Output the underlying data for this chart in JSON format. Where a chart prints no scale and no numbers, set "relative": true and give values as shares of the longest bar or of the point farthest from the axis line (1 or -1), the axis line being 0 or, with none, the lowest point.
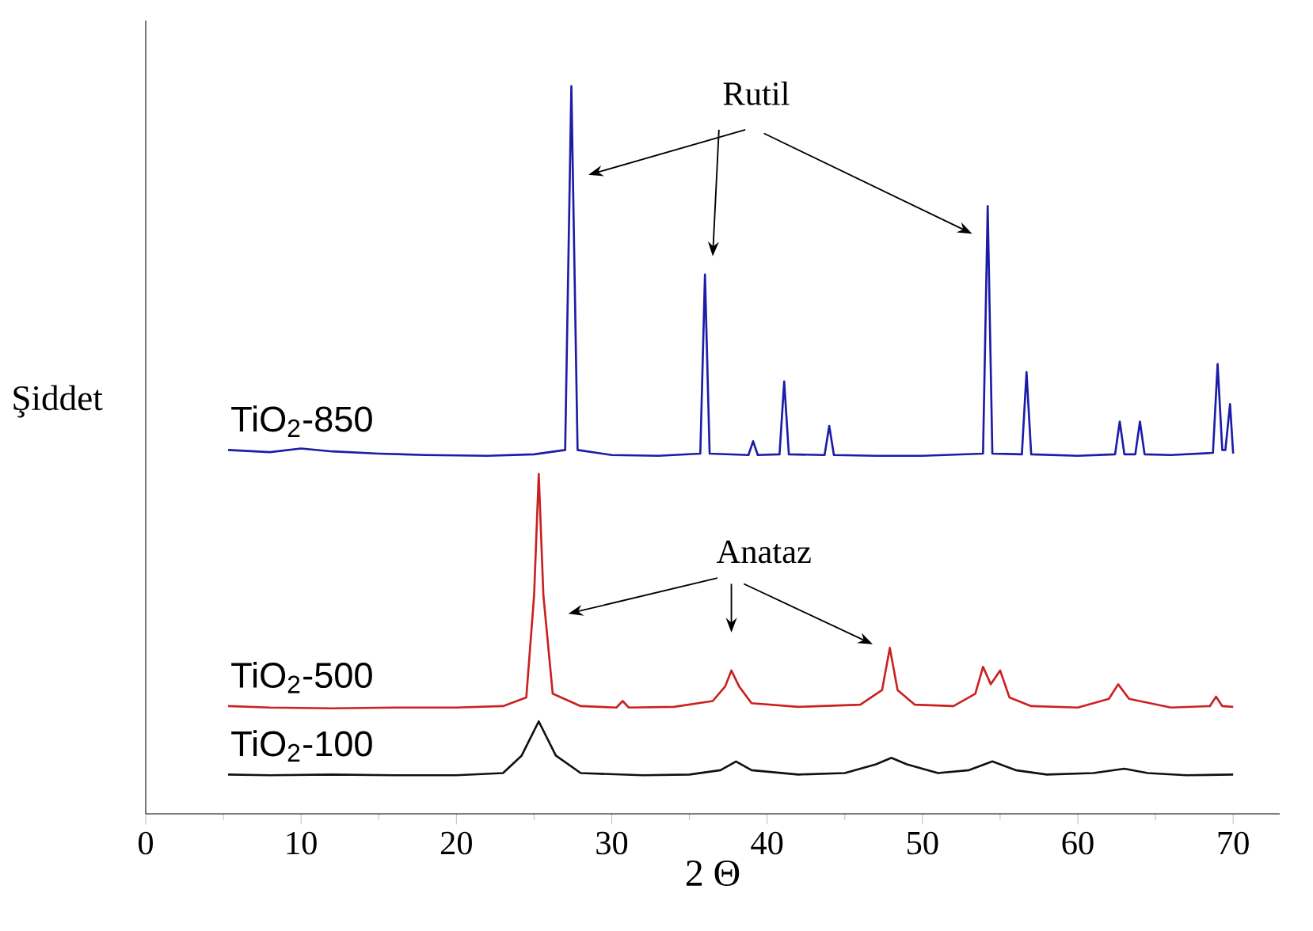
{
  "chart_data": {
    "type": "line",
    "relative": true,
    "xlabel": "2 Θ",
    "ylabel": "Şiddet",
    "xlim": [
      0,
      73
    ],
    "xticks": [
      0,
      10,
      20,
      30,
      40,
      50,
      60,
      70
    ],
    "grid": false,
    "marker": "none",
    "line_style": "solid",
    "annotations": [
      "Rutil",
      "Anataz"
    ],
    "series": [
      {
        "name": "TiO$_{2}$-850",
        "color": "#1c1ca8",
        "x": [
          5.3,
          8,
          10,
          12,
          15,
          18,
          22,
          25,
          27.0,
          27.4,
          27.8,
          30,
          33,
          35.7,
          36.0,
          36.3,
          38.8,
          39.1,
          39.4,
          40.8,
          41.1,
          41.4,
          43.7,
          44.0,
          44.3,
          47,
          50,
          53.9,
          54.2,
          54.5,
          56.4,
          56.7,
          57.0,
          60,
          62.4,
          62.7,
          63.0,
          63.7,
          64.0,
          64.3,
          66,
          68.7,
          69.0,
          69.3,
          69.5,
          69.8,
          70.0
        ],
        "values": [
          0.5,
          0.497,
          0.502,
          0.498,
          0.495,
          0.493,
          0.492,
          0.494,
          0.5,
          1.0,
          0.5,
          0.493,
          0.492,
          0.495,
          0.741,
          0.495,
          0.493,
          0.512,
          0.493,
          0.494,
          0.594,
          0.494,
          0.493,
          0.533,
          0.493,
          0.492,
          0.492,
          0.495,
          0.835,
          0.495,
          0.494,
          0.607,
          0.494,
          0.492,
          0.494,
          0.539,
          0.494,
          0.494,
          0.539,
          0.494,
          0.493,
          0.496,
          0.618,
          0.5,
          0.5,
          0.563,
          0.495
        ]
      },
      {
        "name": "TiO$_{2}$-500",
        "color": "#cc2020",
        "x": [
          5.3,
          8,
          12,
          16,
          20,
          23,
          24.5,
          25.0,
          25.3,
          25.6,
          26.2,
          28,
          30.3,
          30.7,
          31.1,
          34,
          36.5,
          37.3,
          37.7,
          38.2,
          39,
          42,
          46,
          47.4,
          47.9,
          48.4,
          49.5,
          52,
          53.4,
          53.9,
          54.4,
          55.0,
          55.6,
          57,
          60,
          62,
          62.6,
          63.3,
          66,
          68.5,
          68.9,
          69.3,
          70
        ],
        "values": [
          0.148,
          0.146,
          0.145,
          0.146,
          0.146,
          0.148,
          0.16,
          0.3,
          0.467,
          0.3,
          0.165,
          0.148,
          0.146,
          0.155,
          0.146,
          0.147,
          0.155,
          0.175,
          0.197,
          0.175,
          0.152,
          0.147,
          0.15,
          0.17,
          0.228,
          0.17,
          0.15,
          0.148,
          0.165,
          0.202,
          0.178,
          0.197,
          0.16,
          0.148,
          0.146,
          0.158,
          0.178,
          0.158,
          0.146,
          0.148,
          0.161,
          0.148,
          0.147
        ]
      },
      {
        "name": "TiO$_{2}$-100",
        "color": "#111111",
        "x": [
          5.3,
          8,
          12,
          16,
          20,
          23,
          24.2,
          25.3,
          26.4,
          28,
          32,
          35,
          37,
          38,
          39,
          42,
          45,
          47,
          48,
          49,
          51,
          53,
          54.5,
          56,
          58,
          61,
          63,
          64.5,
          67,
          70
        ],
        "values": [
          0.054,
          0.053,
          0.054,
          0.053,
          0.053,
          0.056,
          0.08,
          0.127,
          0.08,
          0.056,
          0.053,
          0.054,
          0.06,
          0.072,
          0.06,
          0.054,
          0.056,
          0.068,
          0.077,
          0.068,
          0.056,
          0.06,
          0.072,
          0.06,
          0.054,
          0.056,
          0.062,
          0.056,
          0.053,
          0.054
        ]
      }
    ]
  }
}
